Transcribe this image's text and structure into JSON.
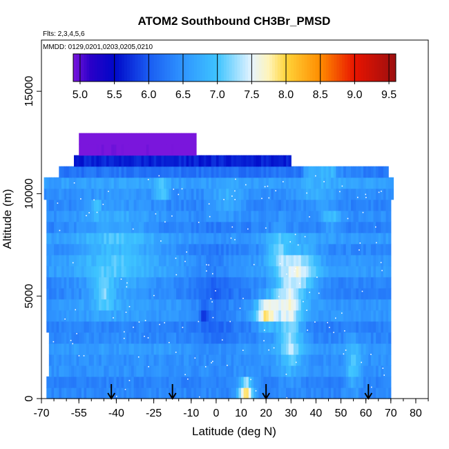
{
  "chart_data": {
    "type": "heatmap",
    "title": "ATOM2 Southbound CH3Br_PMSD",
    "flights_note": "Flts: 2,3,4,5,6",
    "dates_note": "MMDD: 0129,0201,0203,0205,0210",
    "xlabel": "Latitude (deg N)",
    "ylabel": "Altitude (m)",
    "xlim": [
      -70,
      85
    ],
    "ylim": [
      0,
      17500
    ],
    "x_ticks": [
      -70,
      -55,
      -40,
      -25,
      -10,
      0,
      10,
      20,
      30,
      40,
      50,
      60,
      70,
      80
    ],
    "x_tick_labels": [
      "-70",
      "-55",
      "-40",
      "-25",
      "-10",
      "0",
      "10",
      "20",
      "30",
      "40",
      "50",
      "60",
      "70",
      "80"
    ],
    "y_ticks": [
      0,
      5000,
      10000,
      15000
    ],
    "y_tick_labels": [
      "0",
      "5000",
      "10000",
      "15000"
    ],
    "colorbar": {
      "min": 4.9,
      "max": 9.6,
      "tick_values": [
        5.0,
        5.5,
        6.0,
        6.5,
        7.0,
        7.5,
        8.0,
        8.5,
        9.0,
        9.5
      ],
      "tick_labels": [
        "5.0",
        "5.5",
        "6.0",
        "6.5",
        "7.0",
        "7.5",
        "8.0",
        "8.5",
        "9.0",
        "9.5"
      ],
      "stops": [
        {
          "value": 4.9,
          "color": "#7a16dc"
        },
        {
          "value": 5.15,
          "color": "#2a00c8"
        },
        {
          "value": 5.5,
          "color": "#0008c8"
        },
        {
          "value": 6.0,
          "color": "#1a5cf2"
        },
        {
          "value": 6.5,
          "color": "#2f95ff"
        },
        {
          "value": 7.0,
          "color": "#3ec4ff"
        },
        {
          "value": 7.5,
          "color": "#e6f4ff"
        },
        {
          "value": 7.75,
          "color": "#fff4b8"
        },
        {
          "value": 8.0,
          "color": "#ffd43a"
        },
        {
          "value": 8.5,
          "color": "#ff8c00"
        },
        {
          "value": 9.0,
          "color": "#e81400"
        },
        {
          "value": 9.6,
          "color": "#9c0f0f"
        }
      ]
    },
    "flight_markers_lat": [
      -42,
      -17.5,
      20,
      61
    ],
    "anomalies": [
      {
        "lat": 20,
        "alt": 4200,
        "slat": 4,
        "salt": 700,
        "amp": 1.3
      },
      {
        "lat": 28,
        "alt": 4800,
        "slat": 6,
        "salt": 1200,
        "amp": 0.9
      },
      {
        "lat": 34,
        "alt": 6200,
        "slat": 7,
        "salt": 1200,
        "amp": 0.9
      },
      {
        "lat": 30,
        "alt": 2800,
        "slat": 5,
        "salt": 1500,
        "amp": 0.8
      },
      {
        "lat": 25,
        "alt": 7200,
        "slat": 5,
        "salt": 1000,
        "amp": 0.7
      },
      {
        "lat": 12,
        "alt": 450,
        "slat": 3,
        "salt": 450,
        "amp": 1.8
      },
      {
        "lat": 55,
        "alt": 1600,
        "slat": 3,
        "salt": 1200,
        "amp": 0.6
      },
      {
        "lat": 46,
        "alt": 8800,
        "slat": 4,
        "salt": 600,
        "amp": 0.5
      },
      {
        "lat": -22,
        "alt": 10200,
        "slat": 3,
        "salt": 500,
        "amp": 0.7
      },
      {
        "lat": -48,
        "alt": 9300,
        "slat": 2,
        "salt": 350,
        "amp": 0.6
      },
      {
        "lat": -45,
        "alt": 5200,
        "slat": 4,
        "salt": 800,
        "amp": 0.6
      },
      {
        "lat": 5,
        "alt": 9700,
        "slat": 6,
        "salt": 600,
        "amp": 0.5
      },
      {
        "lat": -5,
        "alt": 4200,
        "slat": 2,
        "salt": 350,
        "amp": -0.6
      },
      {
        "lat": 52,
        "alt": 11000,
        "slat": 10,
        "salt": 500,
        "amp": 0.2
      },
      {
        "lat": 40,
        "alt": 10000,
        "slat": 7,
        "salt": 600,
        "amp": 0.4
      }
    ]
  }
}
